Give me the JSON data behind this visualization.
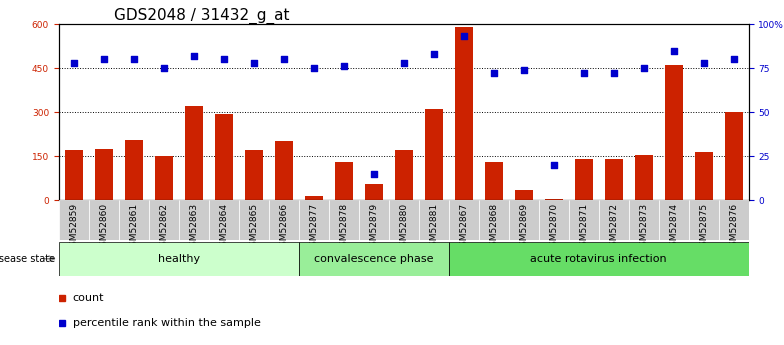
{
  "title": "GDS2048 / 31432_g_at",
  "samples": [
    "GSM52859",
    "GSM52860",
    "GSM52861",
    "GSM52862",
    "GSM52863",
    "GSM52864",
    "GSM52865",
    "GSM52866",
    "GSM52877",
    "GSM52878",
    "GSM52879",
    "GSM52880",
    "GSM52881",
    "GSM52867",
    "GSM52868",
    "GSM52869",
    "GSM52870",
    "GSM52871",
    "GSM52872",
    "GSM52873",
    "GSM52874",
    "GSM52875",
    "GSM52876"
  ],
  "counts": [
    170,
    175,
    205,
    150,
    320,
    295,
    170,
    200,
    15,
    130,
    55,
    170,
    310,
    590,
    130,
    35,
    5,
    140,
    140,
    155,
    460,
    165,
    300
  ],
  "percentiles": [
    78,
    80,
    80,
    75,
    82,
    80,
    78,
    80,
    75,
    76,
    15,
    78,
    83,
    93,
    72,
    74,
    20,
    72,
    72,
    75,
    85,
    78,
    80
  ],
  "groups": [
    {
      "label": "healthy",
      "start": 0,
      "end": 8,
      "color": "#ccffcc"
    },
    {
      "label": "convalescence phase",
      "start": 8,
      "end": 13,
      "color": "#99ee99"
    },
    {
      "label": "acute rotavirus infection",
      "start": 13,
      "end": 23,
      "color": "#66dd66"
    }
  ],
  "bar_color": "#cc2200",
  "dot_color": "#0000cc",
  "left_axis_color": "#cc2200",
  "right_axis_color": "#0000cc",
  "ylim_left": [
    0,
    600
  ],
  "ylim_right": [
    0,
    100
  ],
  "yticks_left": [
    0,
    150,
    300,
    450,
    600
  ],
  "ytick_labels_left": [
    "0",
    "150",
    "300",
    "450",
    "600"
  ],
  "yticks_right": [
    0,
    25,
    50,
    75,
    100
  ],
  "ytick_labels_right": [
    "0",
    "25",
    "50",
    "75",
    "100%"
  ],
  "grid_values": [
    150,
    300,
    450
  ],
  "title_fontsize": 11,
  "tick_fontsize": 6.5,
  "label_fontsize": 8,
  "disease_state_label": "disease state",
  "legend_count_label": "count",
  "legend_pct_label": "percentile rank within the sample",
  "bar_width": 0.6,
  "xtick_bg_color": "#cccccc"
}
